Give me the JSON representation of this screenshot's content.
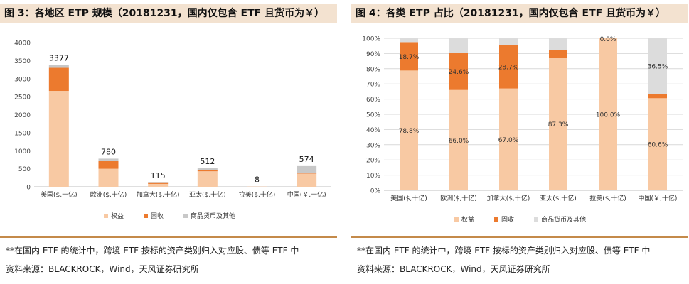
{
  "left": {
    "title": "图 3：各地区 ETP 规模（20181231，国内仅包含 ETF 且货币为￥）",
    "note": "**在国内 ETF 的统计中，跨境 ETF 按标的资产类别归入对应股、债等 ETF 中",
    "source": "资料来源：BLACKROCK，Wind，天风证券研究所"
  },
  "right": {
    "title": "图 4：各类 ETP 占比（20181231，国内仅包含 ETF 且货币为￥）",
    "note": "**在国内 ETF 的统计中，跨境 ETF 按标的资产类别归入对应股、债等 ETF 中",
    "source": "资料来源：BLACKROCK，Wind，天风证券研究所"
  },
  "colors": {
    "equity": "#f8c9a3",
    "fixed_income": "#ec7a2e",
    "commodity": "#c8c8c8",
    "commodity_light": "#dcdcdc"
  },
  "chart_data": [
    {
      "type": "bar",
      "stacked": true,
      "categories": [
        "美国($,十亿)",
        "欧洲($,十亿)",
        "加拿大($,十亿)",
        "亚太($,十亿)",
        "拉美($,十亿)",
        "中国(￥,十亿)"
      ],
      "series": [
        {
          "name": "权益",
          "values": [
            2660,
            500,
            80,
            430,
            6,
            360
          ]
        },
        {
          "name": "固收",
          "values": [
            640,
            210,
            25,
            40,
            1,
            12
          ]
        },
        {
          "name": "商品货币及其他",
          "values": [
            77,
            70,
            10,
            42,
            1,
            202
          ]
        }
      ],
      "totals": [
        3377,
        780,
        115,
        512,
        8,
        574
      ],
      "total_labels": [
        "3377",
        "780",
        "115",
        "512",
        "8",
        "574"
      ],
      "ylim": [
        0,
        4000
      ],
      "yticks": [
        "0",
        "500",
        "1000",
        "1500",
        "2000",
        "2500",
        "3000",
        "3500",
        "4000"
      ],
      "grid": false,
      "legend": "bottom"
    },
    {
      "type": "bar",
      "stacked": true,
      "categories": [
        "美国($,十亿)",
        "欧洲($,十亿)",
        "加拿大($,十亿)",
        "亚太($,十亿)",
        "拉美($,十亿)",
        "中国(￥,十亿)"
      ],
      "series": [
        {
          "name": "权益",
          "values": [
            78.8,
            66.0,
            67.0,
            87.3,
            100.0,
            60.6
          ],
          "labels": [
            "78.8%",
            "66.0%",
            "67.0%",
            "87.3%",
            "100.0%",
            "60.6%"
          ]
        },
        {
          "name": "固收",
          "values": [
            18.7,
            24.6,
            28.7,
            4.9,
            0.0,
            2.9
          ],
          "labels": [
            "18.7%",
            "24.6%",
            "28.7%",
            "4.9%",
            "0.0%",
            "2.9%"
          ]
        },
        {
          "name": "商品货币及其他",
          "values": [
            2.5,
            9.4,
            4.3,
            7.8,
            0.0,
            36.5
          ],
          "labels": [
            "",
            "",
            "",
            "",
            "",
            "36.5%"
          ]
        }
      ],
      "ylim": [
        0,
        100
      ],
      "yticks": [
        "0%",
        "10%",
        "20%",
        "30%",
        "40%",
        "50%",
        "60%",
        "70%",
        "80%",
        "90%",
        "100%"
      ],
      "grid": true,
      "legend": "bottom"
    }
  ]
}
